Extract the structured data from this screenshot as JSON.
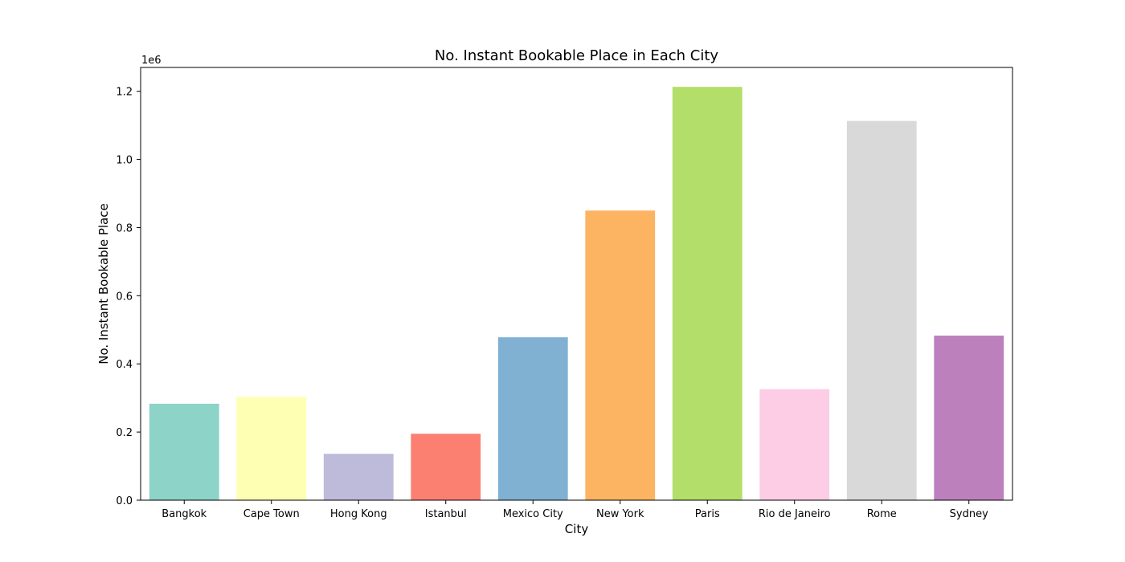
{
  "chart_data": {
    "type": "bar",
    "title": "No. Instant Bookable Place in Each City",
    "xlabel": "City",
    "ylabel": "No. Instant Bookable Place",
    "offset_text": "1e6",
    "categories": [
      "Bangkok",
      "Cape Town",
      "Hong Kong",
      "Istanbul",
      "Mexico City",
      "New York",
      "Paris",
      "Rio de Janeiro",
      "Rome",
      "Sydney"
    ],
    "values": [
      283000,
      303000,
      136000,
      195000,
      478000,
      850000,
      1213000,
      326000,
      1113000,
      483000
    ],
    "colors": [
      "#8dd3c7",
      "#ffffb3",
      "#bebada",
      "#fb8072",
      "#80b1d3",
      "#fdb462",
      "#b3de69",
      "#fccde5",
      "#d9d9d9",
      "#bc80bd"
    ],
    "ylim": [
      0,
      1270000
    ],
    "yticks": [
      0,
      200000,
      400000,
      600000,
      800000,
      1000000,
      1200000
    ],
    "ytick_labels": [
      "0.0",
      "0.2",
      "0.4",
      "0.6",
      "0.8",
      "1.0",
      "1.2"
    ],
    "grid": false,
    "legend": "none"
  }
}
